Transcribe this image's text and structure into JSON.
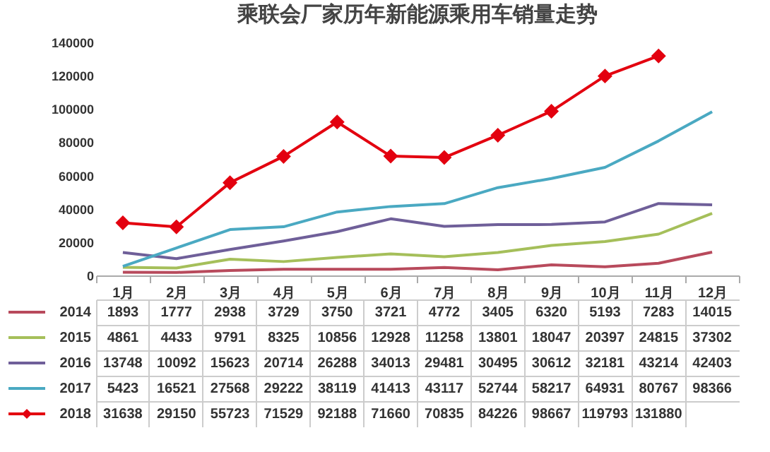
{
  "chart_data": {
    "type": "line",
    "title": "乘联会厂家历年新能源乘用车销量走势",
    "categories": [
      "1月",
      "2月",
      "3月",
      "4月",
      "5月",
      "6月",
      "7月",
      "8月",
      "9月",
      "10月",
      "11月",
      "12月"
    ],
    "series": [
      {
        "name": "2014",
        "color": "#b84a5c",
        "values": [
          1893,
          1777,
          2938,
          3729,
          3750,
          3721,
          4772,
          3405,
          6320,
          5193,
          7283,
          14015
        ]
      },
      {
        "name": "2015",
        "color": "#a5bf5a",
        "values": [
          4861,
          4433,
          9791,
          8325,
          10856,
          12928,
          11258,
          13801,
          18047,
          20397,
          24815,
          37302
        ]
      },
      {
        "name": "2016",
        "color": "#6f5f99",
        "values": [
          13748,
          10092,
          15623,
          20714,
          26288,
          34013,
          29481,
          30495,
          30612,
          32181,
          43214,
          42403
        ]
      },
      {
        "name": "2017",
        "color": "#4aa9c2",
        "values": [
          5423,
          16521,
          27568,
          29222,
          38119,
          41413,
          43117,
          52744,
          58217,
          64931,
          80767,
          98366
        ]
      },
      {
        "name": "2018",
        "color": "#e3000f",
        "marker": "diamond",
        "values": [
          31638,
          29150,
          55723,
          71529,
          92188,
          71660,
          70835,
          84226,
          98667,
          119793,
          131880,
          null
        ]
      }
    ],
    "ylim": [
      0,
      140000
    ],
    "yticks": [
      0,
      20000,
      40000,
      60000,
      80000,
      100000,
      120000,
      140000
    ],
    "grid": false,
    "legend": "bottom",
    "data_labels": true
  }
}
